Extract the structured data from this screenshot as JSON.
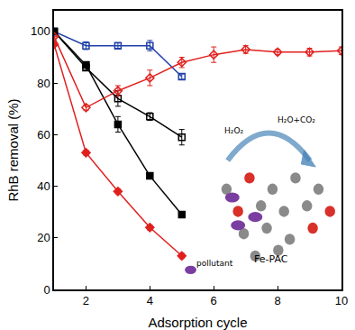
{
  "chart_data": {
    "type": "line",
    "x_label": "Adsorption cycle",
    "y_label": "RhB removal (%)",
    "xlim": [
      1,
      10
    ],
    "xticks": [
      2,
      4,
      6,
      8,
      10
    ],
    "ylim": [
      0,
      108
    ],
    "yticks": [
      0,
      20,
      40,
      60,
      80,
      100
    ],
    "grid": false,
    "series": [
      {
        "color": "#2040a8",
        "marker": "square-open",
        "line_style": "solid",
        "x": [
          1,
          2,
          3,
          4,
          5
        ],
        "values": [
          100,
          94.5,
          94.5,
          94.5,
          82.5
        ],
        "errors": [
          0,
          1.5,
          1,
          2,
          1
        ]
      },
      {
        "color": "#000000",
        "marker": "square-open",
        "line_style": "solid",
        "x": [
          1,
          2,
          3,
          4,
          5
        ],
        "values": [
          100,
          86,
          74,
          67,
          59
        ],
        "errors": [
          0,
          1,
          3,
          1.5,
          3
        ]
      },
      {
        "color": "#000000",
        "marker": "square",
        "line_style": "solid",
        "x": [
          1,
          2,
          3,
          4,
          5
        ],
        "values": [
          100,
          87,
          64,
          44,
          29
        ],
        "errors": [
          0,
          1,
          3,
          1,
          1
        ]
      },
      {
        "color": "#e0201e",
        "marker": "diamond",
        "line_style": "solid",
        "x": [
          1,
          2,
          3,
          4,
          5
        ],
        "values": [
          95,
          53,
          38,
          24,
          13
        ],
        "errors": [
          0,
          1,
          1,
          1,
          1
        ]
      },
      {
        "color": "#e0201e",
        "marker": "diamond-open",
        "line_style": "solid",
        "x": [
          1,
          2,
          3,
          4,
          5,
          6,
          7,
          8,
          9,
          10
        ],
        "values": [
          98,
          70.5,
          77,
          82,
          88,
          91,
          93,
          92,
          92,
          92.5
        ],
        "errors": [
          0,
          1,
          2,
          3,
          2,
          3,
          1.5,
          1,
          1.5,
          1.5
        ]
      }
    ],
    "annotations": [
      "H₂O₂",
      "H₂O+CO₂",
      "pollutant",
      "Fe-PAC"
    ]
  }
}
